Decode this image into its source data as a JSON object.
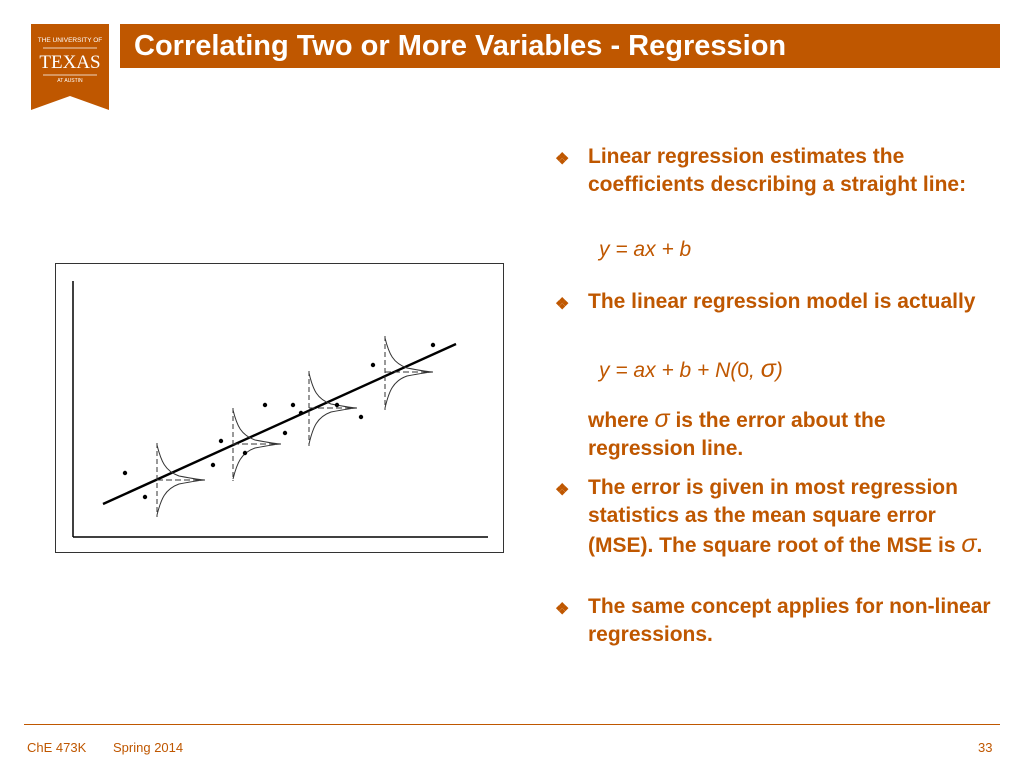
{
  "logo": {
    "line1": "THE UNIVERSITY OF",
    "line2": "TEXAS",
    "line3": "AT AUSTIN",
    "color": "#bf5700"
  },
  "title": "Correlating Two or More Variables - Regression",
  "bullets": [
    {
      "text": "Linear regression estimates the coefficients describing a straight line:"
    },
    {
      "text": "The linear regression model is actually"
    },
    {
      "text": "The error is given in most regression statistics as the mean square error (MSE). The square root of the MSE is"
    },
    {
      "text": "The same concept applies for non-linear regressions."
    }
  ],
  "eq1": "y = ax + b",
  "eq2": {
    "main": "y = ax + b + N(",
    "zero": "0",
    "comma": ",",
    "close": ")"
  },
  "where": {
    "pre": "where",
    "post": "is the error about the regression line."
  },
  "bullet3_end": ".",
  "sigma_symbol": "σ",
  "footer": {
    "course": "ChE 473K",
    "term": "Spring 2014",
    "page": "33"
  },
  "colors": {
    "accent": "#bf5700",
    "text_on_accent": "#ffffff"
  }
}
